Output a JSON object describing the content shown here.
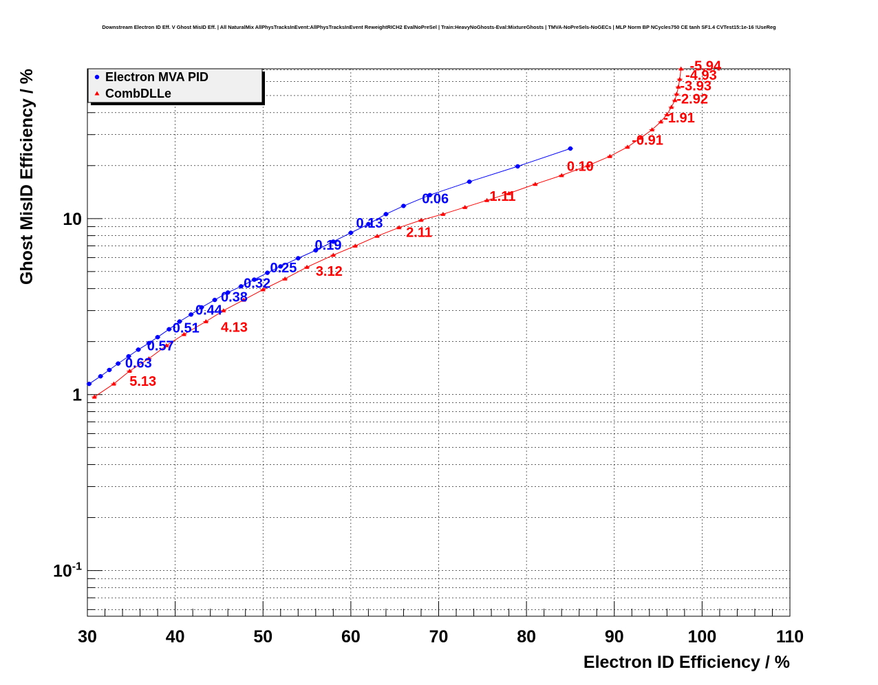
{
  "chart_data": {
    "type": "line",
    "title": "Downstream Electron ID Eff. V Ghost MisID Eff. | All NaturalMix AllPhysTracksInEvent:AllPhysTracksInEvent ReweightRICH2 EvalNoPreSel | Train:HeavyNoGhosts-Eval:MixtureGhosts | TMVA-NoPreSels-NoGECs | MLP Norm BP NCycles750 CE tanh SF1.4 CVTest15:1e-16 !UseReg",
    "xlabel": "Electron ID Efficiency / %",
    "ylabel": "Ghost MisID Efficiency / %",
    "xlim": [
      30,
      110
    ],
    "ylim": [
      0.055,
      71
    ],
    "yscale": "log",
    "grid": true,
    "legend_position": "top-left",
    "x_ticks": [
      "30",
      "40",
      "50",
      "60",
      "70",
      "80",
      "90",
      "100",
      "110"
    ],
    "y_ticks": [
      {
        "base": "10",
        "exp": "-1"
      },
      {
        "base": "1",
        "exp": ""
      },
      {
        "base": "10",
        "exp": ""
      }
    ],
    "series": [
      {
        "name": "Electron MVA PID",
        "color": "#0000ff",
        "marker": "circle",
        "points": [
          [
            30.2,
            1.15
          ],
          [
            31.5,
            1.27
          ],
          [
            32.5,
            1.38
          ],
          [
            33.5,
            1.5
          ],
          [
            34.7,
            1.65
          ],
          [
            35.8,
            1.8
          ],
          [
            37.0,
            1.96
          ],
          [
            38.0,
            2.12
          ],
          [
            39.3,
            2.35
          ],
          [
            40.5,
            2.6
          ],
          [
            41.8,
            2.85
          ],
          [
            43.0,
            3.13
          ],
          [
            44.5,
            3.45
          ],
          [
            46.0,
            3.8
          ],
          [
            47.5,
            4.12
          ],
          [
            49.0,
            4.5
          ],
          [
            50.5,
            4.92
          ],
          [
            52.0,
            5.35
          ],
          [
            54.0,
            5.95
          ],
          [
            56.0,
            6.6
          ],
          [
            58.0,
            7.4
          ],
          [
            60.0,
            8.3
          ],
          [
            62.0,
            9.3
          ],
          [
            64.0,
            10.6
          ],
          [
            66.0,
            11.8
          ],
          [
            69.0,
            13.6
          ],
          [
            73.5,
            16.2
          ],
          [
            79.0,
            19.8
          ],
          [
            85.0,
            25.0
          ]
        ],
        "labels": [
          {
            "text": "0.63",
            "x": 34.3,
            "y": 1.42
          },
          {
            "text": "0.57",
            "x": 36.8,
            "y": 1.78
          },
          {
            "text": "0.51",
            "x": 39.7,
            "y": 2.25
          },
          {
            "text": "0.44",
            "x": 42.3,
            "y": 2.85
          },
          {
            "text": "0.38",
            "x": 45.2,
            "y": 3.38
          },
          {
            "text": "0.32",
            "x": 47.8,
            "y": 4.05
          },
          {
            "text": "0.25",
            "x": 50.8,
            "y": 4.95
          },
          {
            "text": "0.19",
            "x": 55.9,
            "y": 6.65
          },
          {
            "text": "0.13",
            "x": 60.6,
            "y": 8.9
          },
          {
            "text": "0.06",
            "x": 68.1,
            "y": 12.2
          }
        ]
      },
      {
        "name": "CombDLLe",
        "color": "#ff0000",
        "marker": "triangle",
        "points": [
          [
            30.8,
            0.97
          ],
          [
            33.0,
            1.15
          ],
          [
            34.8,
            1.36
          ],
          [
            37.0,
            1.6
          ],
          [
            39.0,
            1.9
          ],
          [
            41.0,
            2.2
          ],
          [
            43.5,
            2.6
          ],
          [
            45.5,
            3.0
          ],
          [
            47.8,
            3.45
          ],
          [
            50.0,
            3.95
          ],
          [
            52.5,
            4.55
          ],
          [
            55.0,
            5.3
          ],
          [
            58.0,
            6.2
          ],
          [
            60.5,
            7.0
          ],
          [
            63.0,
            7.95
          ],
          [
            65.5,
            8.9
          ],
          [
            68.0,
            9.8
          ],
          [
            70.5,
            10.6
          ],
          [
            73.0,
            11.6
          ],
          [
            75.5,
            12.7
          ],
          [
            78.0,
            13.9
          ],
          [
            81.0,
            15.7
          ],
          [
            84.0,
            17.6
          ],
          [
            87.0,
            20.0
          ],
          [
            89.5,
            22.6
          ],
          [
            91.5,
            25.5
          ],
          [
            93.0,
            28.7
          ],
          [
            94.3,
            32.0
          ],
          [
            95.3,
            35.5
          ],
          [
            96.0,
            39.0
          ],
          [
            96.5,
            43.0
          ],
          [
            96.9,
            47.0
          ],
          [
            97.1,
            51.0
          ],
          [
            97.3,
            56.0
          ],
          [
            97.45,
            62.0
          ],
          [
            97.6,
            71.0
          ]
        ],
        "labels": [
          {
            "text": "5.13",
            "x": 34.8,
            "y": 1.12
          },
          {
            "text": "4.13",
            "x": 45.2,
            "y": 2.27
          },
          {
            "text": "3.12",
            "x": 56.0,
            "y": 4.72
          },
          {
            "text": "2.11",
            "x": 66.3,
            "y": 7.85
          },
          {
            "text": "1.11",
            "x": 75.8,
            "y": 12.6
          },
          {
            "text": "0.10",
            "x": 84.6,
            "y": 18.7
          },
          {
            "text": "-0.91",
            "x": 92.0,
            "y": 26.3
          },
          {
            "text": "-1.91",
            "x": 95.6,
            "y": 35.2
          },
          {
            "text": "-2.92",
            "x": 97.1,
            "y": 45.0
          },
          {
            "text": "-3.93",
            "x": 97.5,
            "y": 53.5
          },
          {
            "text": "-4.93",
            "x": 98.1,
            "y": 61.5
          },
          {
            "text": "-5.94",
            "x": 98.6,
            "y": 69.5
          }
        ]
      }
    ]
  }
}
